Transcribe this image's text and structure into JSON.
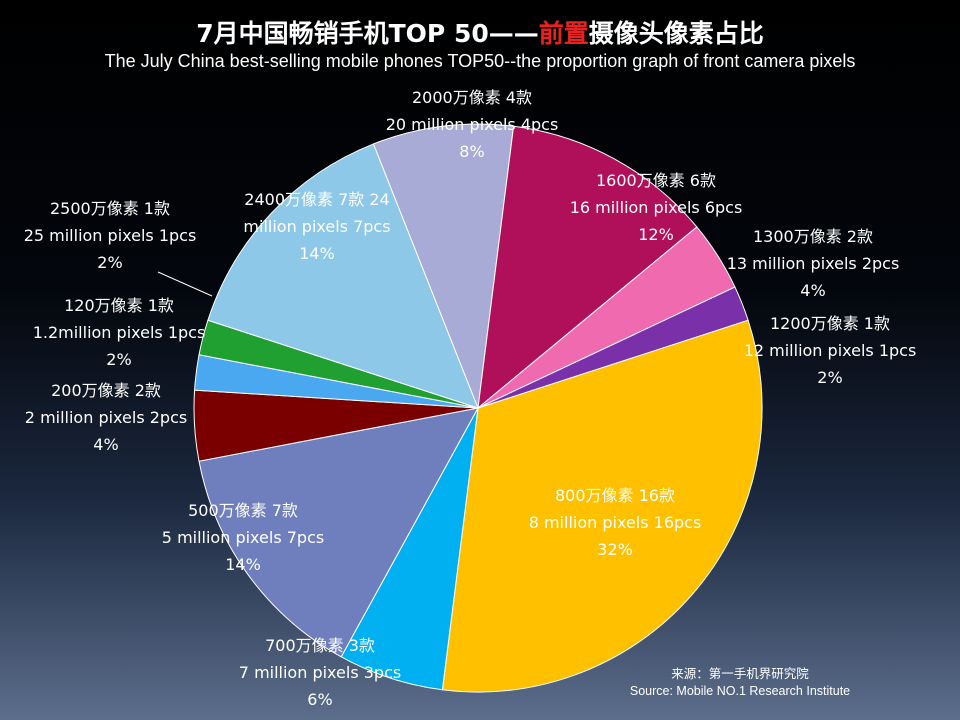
{
  "title": {
    "cn_part1": "7月中国畅销手机TOP 50——",
    "cn_highlight": "前置",
    "cn_part2": "摄像头像素占比",
    "en": "The July China best-selling mobile phones TOP50--the proportion graph of front camera pixels"
  },
  "chart_data": {
    "type": "pie",
    "title": "7月中国畅销手机TOP 50——前置摄像头像素占比",
    "subtitle": "The July China best-selling mobile phones TOP50--the proportion graph of front camera pixels",
    "slices": [
      {
        "cn": "800万像素 16款",
        "en": "8 million pixels 16pcs",
        "pct_label": "32%",
        "value": 16,
        "color": "#ffc000"
      },
      {
        "cn": "700万像素 3款",
        "en": "7 million pixels 3pcs",
        "pct_label": "6%",
        "value": 3,
        "color": "#00b0f0"
      },
      {
        "cn": "500万像素 7款",
        "en": "5 million pixels 7pcs",
        "pct_label": "14%",
        "value": 7,
        "color": "#6f7fbd"
      },
      {
        "cn": "200万像素 2款",
        "en": "2 million pixels 2pcs",
        "pct_label": "4%",
        "value": 2,
        "color": "#7a0000"
      },
      {
        "cn": "120万像素 1款",
        "en": "1.2million pixels 1pcs",
        "pct_label": "2%",
        "value": 1,
        "color": "#4aa8f0"
      },
      {
        "cn": "2500万像素  1款",
        "en": "25 million pixels 1pcs",
        "pct_label": "2%",
        "value": 1,
        "color": "#20a030"
      },
      {
        "cn": "2400万像素  7款 24",
        "en": "million pixels 7pcs",
        "pct_label": "14%",
        "value": 7,
        "color": "#8ec8e8"
      },
      {
        "cn": "2000万像素 4款",
        "en": "20 million pixels 4pcs",
        "pct_label": "8%",
        "value": 4,
        "color": "#a7abd6"
      },
      {
        "cn": "1600万像素 6款",
        "en": "16 million pixels 6pcs",
        "pct_label": "12%",
        "value": 6,
        "color": "#b0105a"
      },
      {
        "cn": "1300万像素 2款",
        "en": "13 million pixels 2pcs",
        "pct_label": "4%",
        "value": 2,
        "color": "#f06ab0"
      },
      {
        "cn": "1200万像素 1款",
        "en": "12 million pixels 1pcs",
        "pct_label": "2%",
        "value": 1,
        "color": "#7a30a8"
      }
    ]
  },
  "source": {
    "cn": "来源：第一手机界研究院",
    "en": "Source: Mobile NO.1 Research Institute"
  }
}
